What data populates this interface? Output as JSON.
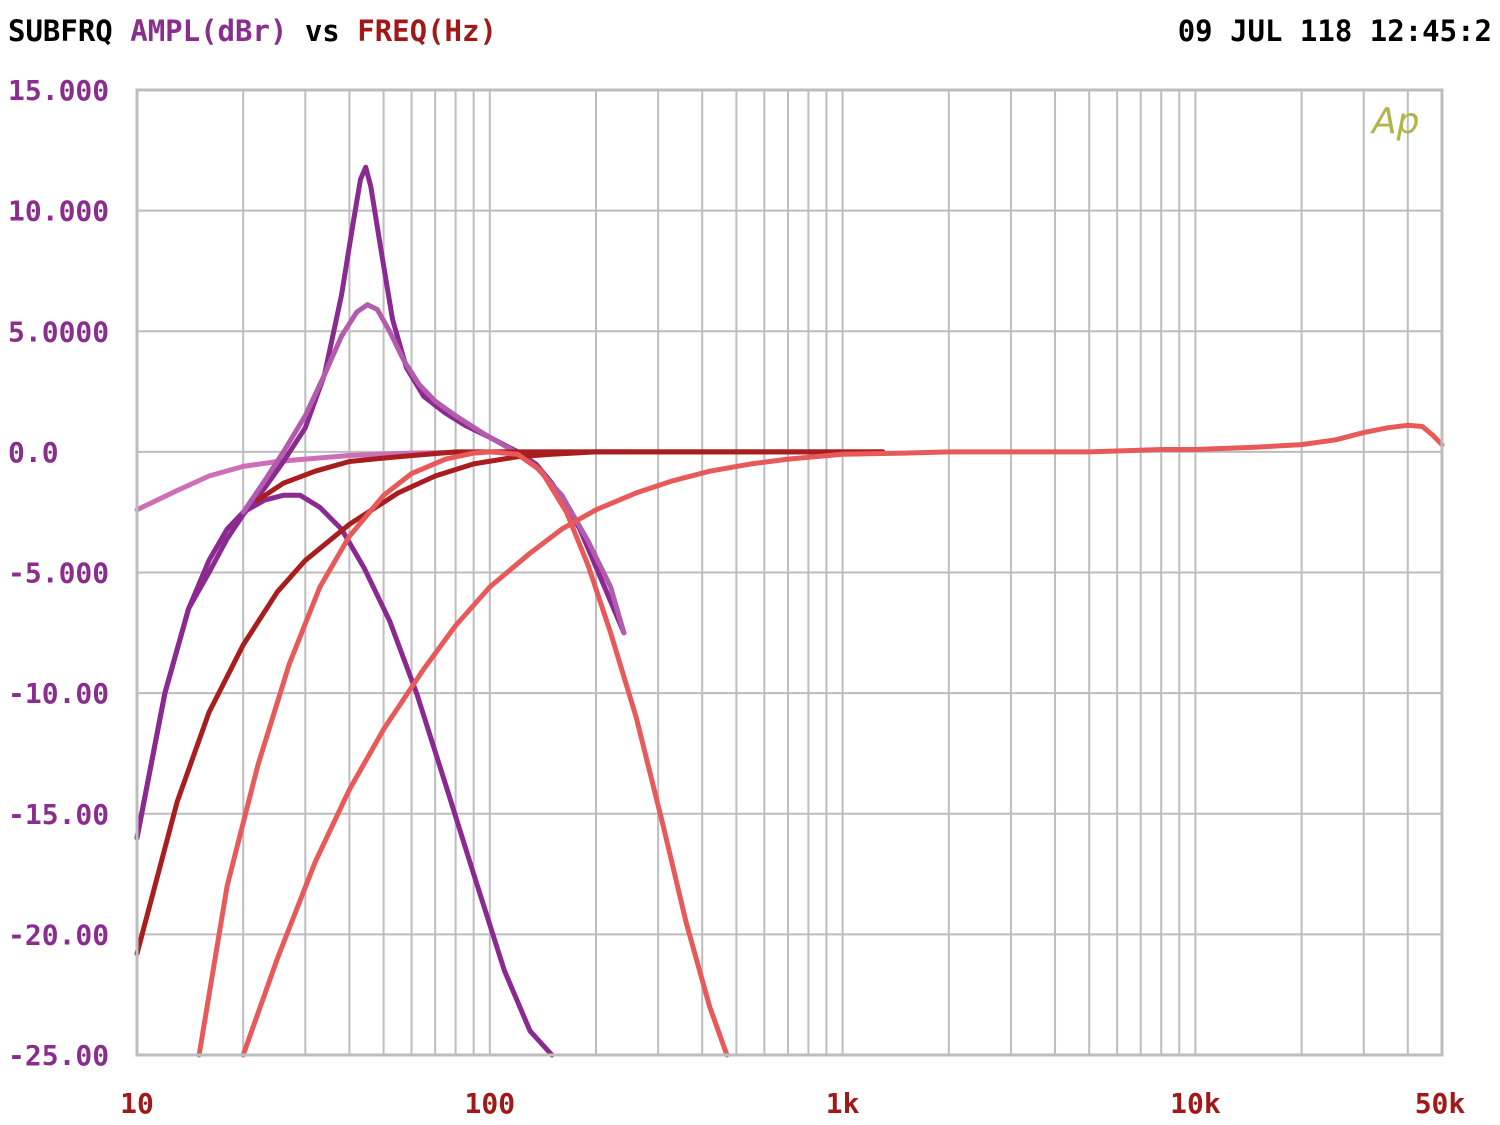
{
  "header": {
    "program": "SUBFRQ",
    "y_quantity": "AMPL(dBr)",
    "vs": "vs",
    "x_quantity": "FREQ(Hz)",
    "timestamp": "09 JUL 118 12:45:2"
  },
  "logo_text": "Ap",
  "colors": {
    "y_axis_text": "#8a2e8e",
    "x_axis_text": "#a01818",
    "program_text": "#000000",
    "grid": "#bdbdbd",
    "logo": "#b3b34a"
  },
  "chart_data": {
    "type": "line",
    "title": "",
    "xlabel": "FREQ(Hz)",
    "ylabel": "AMPL(dBr)",
    "x_scale": "log",
    "xlim": [
      10,
      50000
    ],
    "ylim": [
      -25,
      15
    ],
    "grid": true,
    "legend": "none",
    "x_tick_labels": [
      {
        "value": 10,
        "label": "10"
      },
      {
        "value": 100,
        "label": "100"
      },
      {
        "value": 1000,
        "label": "1k"
      },
      {
        "value": 10000,
        "label": "10k"
      },
      {
        "value": 50000,
        "label": "50k"
      }
    ],
    "y_tick_labels": [
      {
        "value": 15,
        "label": "15.000"
      },
      {
        "value": 10,
        "label": "10.000"
      },
      {
        "value": 5,
        "label": "5.0000"
      },
      {
        "value": 0,
        "label": "0.0"
      },
      {
        "value": -5,
        "label": "-5.000"
      },
      {
        "value": -10,
        "label": "-10.00"
      },
      {
        "value": -15,
        "label": "-15.00"
      },
      {
        "value": -20,
        "label": "-20.00"
      },
      {
        "value": -25,
        "label": "-25.00"
      }
    ],
    "series": [
      {
        "color": "#cc6fb8",
        "points": [
          [
            10,
            -2.4
          ],
          [
            13,
            -1.6
          ],
          [
            16,
            -1.0
          ],
          [
            20,
            -0.6
          ],
          [
            25,
            -0.4
          ],
          [
            30,
            -0.3
          ],
          [
            40,
            -0.15
          ],
          [
            60,
            -0.05
          ],
          [
            100,
            0
          ],
          [
            200,
            0
          ],
          [
            250,
            0
          ]
        ]
      },
      {
        "color": "#8a2a90",
        "points": [
          [
            10,
            -16.0
          ],
          [
            12,
            -10.0
          ],
          [
            14,
            -6.5
          ],
          [
            16,
            -4.5
          ],
          [
            18,
            -3.2
          ],
          [
            20,
            -2.5
          ],
          [
            23,
            -2.0
          ],
          [
            26,
            -1.8
          ],
          [
            29,
            -1.8
          ],
          [
            33,
            -2.3
          ],
          [
            38,
            -3.2
          ],
          [
            44,
            -4.8
          ],
          [
            52,
            -7.0
          ],
          [
            62,
            -10.0
          ],
          [
            75,
            -13.8
          ],
          [
            90,
            -17.5
          ],
          [
            110,
            -21.5
          ],
          [
            130,
            -24.0
          ],
          [
            150,
            -25.0
          ]
        ]
      },
      {
        "color": "#8a2a90",
        "points": [
          [
            10,
            -16.0
          ],
          [
            12,
            -10.0
          ],
          [
            14,
            -6.5
          ],
          [
            16,
            -5.0
          ],
          [
            18,
            -3.6
          ],
          [
            20,
            -2.6
          ],
          [
            23,
            -1.5
          ],
          [
            26,
            -0.4
          ],
          [
            30,
            1.0
          ],
          [
            34,
            3.2
          ],
          [
            38,
            6.5
          ],
          [
            41,
            9.5
          ],
          [
            43,
            11.3
          ],
          [
            44.5,
            11.8
          ],
          [
            46,
            11.0
          ],
          [
            49,
            8.5
          ],
          [
            53,
            5.5
          ],
          [
            58,
            3.5
          ],
          [
            65,
            2.3
          ],
          [
            75,
            1.6
          ],
          [
            85,
            1.1
          ],
          [
            100,
            0.6
          ],
          [
            120,
            0
          ],
          [
            135,
            -0.5
          ],
          [
            150,
            -1.3
          ],
          [
            180,
            -3.2
          ],
          [
            210,
            -5.5
          ],
          [
            240,
            -7.5
          ]
        ]
      },
      {
        "color": "#b35cae",
        "points": [
          [
            20,
            -2.5
          ],
          [
            23,
            -1.2
          ],
          [
            26,
            0
          ],
          [
            30,
            1.5
          ],
          [
            34,
            3.2
          ],
          [
            38,
            4.8
          ],
          [
            42,
            5.8
          ],
          [
            45,
            6.1
          ],
          [
            48,
            5.9
          ],
          [
            52,
            5.0
          ],
          [
            57,
            3.8
          ],
          [
            63,
            2.8
          ],
          [
            70,
            2.1
          ],
          [
            80,
            1.5
          ],
          [
            95,
            0.8
          ],
          [
            115,
            0.1
          ],
          [
            135,
            -0.6
          ],
          [
            160,
            -1.8
          ],
          [
            190,
            -3.7
          ],
          [
            220,
            -5.6
          ],
          [
            240,
            -7.5
          ]
        ]
      },
      {
        "color": "#a81e1e",
        "points": [
          [
            10,
            -20.8
          ],
          [
            13,
            -14.5
          ],
          [
            16,
            -10.8
          ],
          [
            20,
            -8.0
          ],
          [
            25,
            -5.8
          ],
          [
            30,
            -4.5
          ],
          [
            40,
            -3.0
          ],
          [
            55,
            -1.7
          ],
          [
            70,
            -1.0
          ],
          [
            90,
            -0.5
          ],
          [
            120,
            -0.2
          ],
          [
            150,
            -0.1
          ],
          [
            200,
            0
          ],
          [
            300,
            0
          ],
          [
            500,
            0
          ],
          [
            800,
            0
          ],
          [
            1300,
            0
          ]
        ]
      },
      {
        "color": "#a81e1e",
        "points": [
          [
            22,
            -2.0
          ],
          [
            26,
            -1.3
          ],
          [
            32,
            -0.8
          ],
          [
            40,
            -0.4
          ],
          [
            55,
            -0.2
          ],
          [
            80,
            0
          ],
          [
            150,
            0
          ],
          [
            300,
            0
          ],
          [
            600,
            0
          ],
          [
            900,
            0
          ],
          [
            1300,
            0
          ]
        ]
      },
      {
        "color": "#e85a5a",
        "points": [
          [
            15,
            -25.0
          ],
          [
            18,
            -18.0
          ],
          [
            22,
            -13.0
          ],
          [
            27,
            -8.8
          ],
          [
            33,
            -5.6
          ],
          [
            40,
            -3.5
          ],
          [
            50,
            -1.8
          ],
          [
            60,
            -0.9
          ],
          [
            75,
            -0.3
          ],
          [
            90,
            -0.05
          ],
          [
            100,
            0
          ],
          [
            120,
            -0.1
          ],
          [
            140,
            -0.8
          ],
          [
            165,
            -2.5
          ],
          [
            190,
            -4.7
          ],
          [
            220,
            -7.5
          ],
          [
            260,
            -11.0
          ],
          [
            310,
            -15.5
          ],
          [
            360,
            -19.5
          ],
          [
            420,
            -23.0
          ],
          [
            470,
            -25.0
          ]
        ]
      },
      {
        "color": "#e85a5a",
        "points": [
          [
            20,
            -25.0
          ],
          [
            25,
            -21.0
          ],
          [
            32,
            -17.0
          ],
          [
            40,
            -14.0
          ],
          [
            50,
            -11.5
          ],
          [
            65,
            -9.0
          ],
          [
            80,
            -7.2
          ],
          [
            100,
            -5.6
          ],
          [
            130,
            -4.2
          ],
          [
            160,
            -3.2
          ],
          [
            200,
            -2.4
          ],
          [
            260,
            -1.7
          ],
          [
            330,
            -1.2
          ],
          [
            420,
            -0.8
          ],
          [
            550,
            -0.5
          ],
          [
            700,
            -0.3
          ],
          [
            1000,
            -0.1
          ],
          [
            1500,
            -0.05
          ],
          [
            2000,
            0
          ],
          [
            3000,
            0
          ],
          [
            5000,
            0
          ],
          [
            8000,
            0.1
          ],
          [
            10000,
            0.1
          ],
          [
            15000,
            0.2
          ],
          [
            20000,
            0.3
          ],
          [
            25000,
            0.5
          ],
          [
            30000,
            0.8
          ],
          [
            35000,
            1.0
          ],
          [
            40000,
            1.1
          ],
          [
            44000,
            1.05
          ],
          [
            47000,
            0.7
          ],
          [
            50000,
            0.3
          ]
        ]
      }
    ]
  }
}
